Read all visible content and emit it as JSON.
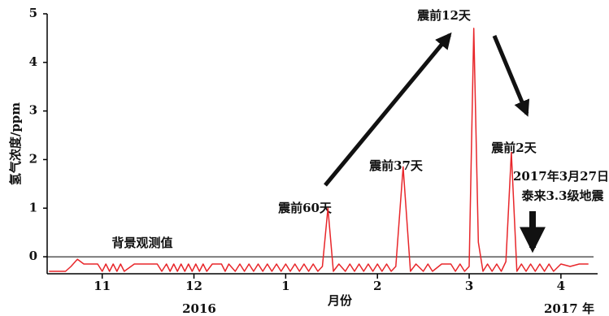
{
  "chart_data": {
    "type": "line",
    "y_label": "氢气浓度/ppm",
    "x_label": "月份",
    "year_labels": [
      "2016",
      "2017 年"
    ],
    "xlim": [
      10.4,
      16.4
    ],
    "xticks": [
      11,
      12,
      {
        "value": 13,
        "label": "1"
      },
      {
        "value": 14,
        "label": "2"
      },
      {
        "value": 15,
        "label": "3"
      },
      {
        "value": 16,
        "label": "4"
      }
    ],
    "ylim": [
      -0.35,
      5
    ],
    "yticks": [
      0,
      1,
      2,
      3,
      4,
      5
    ],
    "background_value": 0,
    "background_label": "背景观测值",
    "annotations": [
      "震前60天",
      "震前37天",
      "震前12天",
      "震前2天",
      "2017年3月27日",
      "泰来3.3级地震"
    ],
    "series": [
      {
        "color": "#e8262a",
        "x": [
          10.42,
          10.6,
          10.66,
          10.73,
          10.8,
          10.95,
          11.0,
          11.04,
          11.08,
          11.12,
          11.16,
          11.2,
          11.24,
          11.35,
          11.6,
          11.65,
          11.7,
          11.74,
          11.78,
          11.82,
          11.86,
          11.9,
          11.94,
          11.98,
          12.02,
          12.06,
          12.1,
          12.14,
          12.2,
          12.3,
          12.34,
          12.38,
          12.45,
          12.5,
          12.55,
          12.6,
          12.65,
          12.7,
          12.75,
          12.8,
          12.85,
          12.9,
          12.95,
          13.0,
          13.05,
          13.1,
          13.15,
          13.2,
          13.25,
          13.3,
          13.35,
          13.4,
          13.46,
          13.52,
          13.58,
          13.65,
          13.7,
          13.75,
          13.8,
          13.85,
          13.9,
          13.95,
          14.0,
          14.05,
          14.1,
          14.15,
          14.2,
          14.28,
          14.36,
          14.42,
          14.5,
          14.55,
          14.6,
          14.7,
          14.8,
          14.85,
          14.9,
          14.95,
          15.0,
          15.05,
          15.1,
          15.15,
          15.2,
          15.25,
          15.3,
          15.35,
          15.4,
          15.46,
          15.52,
          15.57,
          15.62,
          15.67,
          15.72,
          15.77,
          15.82,
          15.87,
          15.92,
          16.0,
          16.1,
          16.2,
          16.3
        ],
        "values": [
          -0.3,
          -0.3,
          -0.2,
          -0.05,
          -0.15,
          -0.15,
          -0.3,
          -0.15,
          -0.3,
          -0.15,
          -0.3,
          -0.15,
          -0.3,
          -0.15,
          -0.15,
          -0.3,
          -0.15,
          -0.3,
          -0.15,
          -0.3,
          -0.15,
          -0.3,
          -0.15,
          -0.3,
          -0.15,
          -0.3,
          -0.15,
          -0.3,
          -0.15,
          -0.15,
          -0.3,
          -0.15,
          -0.3,
          -0.15,
          -0.3,
          -0.15,
          -0.3,
          -0.15,
          -0.3,
          -0.15,
          -0.3,
          -0.15,
          -0.3,
          -0.15,
          -0.3,
          -0.15,
          -0.3,
          -0.15,
          -0.3,
          -0.15,
          -0.3,
          -0.2,
          1.0,
          -0.3,
          -0.15,
          -0.3,
          -0.15,
          -0.3,
          -0.15,
          -0.3,
          -0.15,
          -0.3,
          -0.15,
          -0.3,
          -0.15,
          -0.3,
          -0.2,
          1.85,
          -0.3,
          -0.15,
          -0.3,
          -0.15,
          -0.3,
          -0.15,
          -0.15,
          -0.3,
          -0.15,
          -0.3,
          -0.2,
          4.7,
          0.3,
          -0.3,
          -0.15,
          -0.3,
          -0.15,
          -0.3,
          -0.1,
          2.15,
          -0.3,
          -0.15,
          -0.3,
          -0.15,
          -0.3,
          -0.15,
          -0.3,
          -0.15,
          -0.3,
          -0.15,
          -0.2,
          -0.15,
          -0.15
        ]
      }
    ]
  }
}
